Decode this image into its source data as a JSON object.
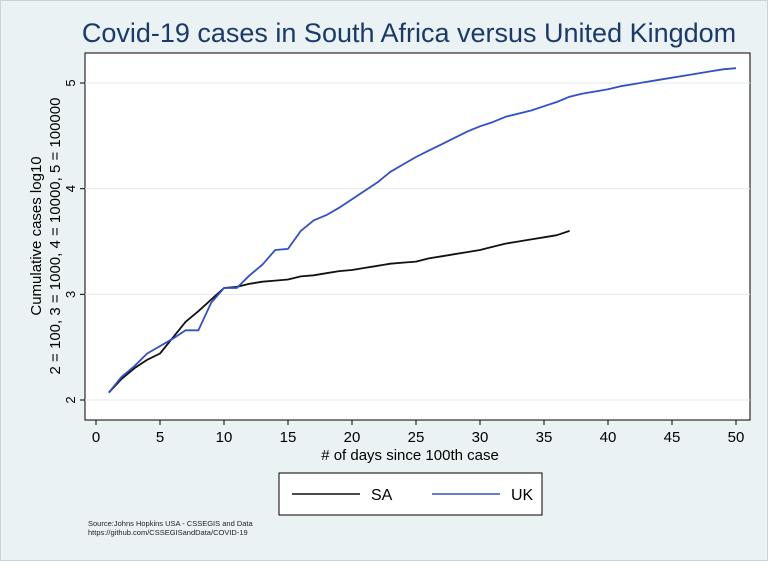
{
  "chart_data": {
    "type": "line",
    "title": "Covid-19 cases in South Africa versus United Kingdom",
    "xlabel": "# of days since 100th case",
    "ylabel_line1": "Cumulative cases log10",
    "ylabel_line2": "2 = 100,   3 = 1000, 4 = 10000, 5 = 100000",
    "xlim": [
      0,
      50
    ],
    "ylim": [
      2,
      5.3
    ],
    "x_ticks": [
      0,
      5,
      10,
      15,
      20,
      25,
      30,
      35,
      40,
      45,
      50
    ],
    "y_ticks": [
      2,
      3,
      4,
      5
    ],
    "grid": "horizontal",
    "legend_position": "bottom",
    "series": [
      {
        "name": "SA",
        "color": "#111111",
        "x": [
          1,
          2,
          3,
          4,
          5,
          6,
          7,
          8,
          9,
          10,
          11,
          12,
          13,
          14,
          15,
          16,
          17,
          18,
          19,
          20,
          21,
          22,
          23,
          24,
          25,
          26,
          27,
          28,
          29,
          30,
          31,
          32,
          33,
          34,
          35,
          36,
          37
        ],
        "values": [
          2.07,
          2.2,
          2.3,
          2.38,
          2.44,
          2.59,
          2.74,
          2.84,
          2.95,
          3.06,
          3.07,
          3.1,
          3.12,
          3.13,
          3.14,
          3.17,
          3.18,
          3.2,
          3.22,
          3.23,
          3.25,
          3.27,
          3.29,
          3.3,
          3.31,
          3.34,
          3.36,
          3.38,
          3.4,
          3.42,
          3.45,
          3.48,
          3.5,
          3.52,
          3.54,
          3.56,
          3.6
        ]
      },
      {
        "name": "UK",
        "color": "#3050c8",
        "x": [
          1,
          2,
          3,
          4,
          5,
          6,
          7,
          8,
          9,
          10,
          11,
          12,
          13,
          14,
          15,
          16,
          17,
          18,
          19,
          20,
          21,
          22,
          23,
          24,
          25,
          26,
          27,
          28,
          29,
          30,
          31,
          32,
          33,
          34,
          35,
          36,
          37,
          38,
          39,
          40,
          41,
          42,
          43,
          44,
          45,
          46,
          47,
          48,
          49,
          50
        ],
        "values": [
          2.07,
          2.22,
          2.32,
          2.44,
          2.51,
          2.58,
          2.66,
          2.66,
          2.92,
          3.06,
          3.06,
          3.18,
          3.28,
          3.42,
          3.43,
          3.6,
          3.7,
          3.75,
          3.82,
          3.9,
          3.98,
          4.06,
          4.16,
          4.23,
          4.3,
          4.36,
          4.42,
          4.48,
          4.54,
          4.59,
          4.63,
          4.68,
          4.71,
          4.74,
          4.78,
          4.82,
          4.87,
          4.9,
          4.92,
          4.94,
          4.97,
          4.99,
          5.01,
          5.03,
          5.05,
          5.07,
          5.09,
          5.11,
          5.13,
          5.14
        ]
      }
    ],
    "source_line1": "Source:Johns Hopkins USA - CSSEGIS and Data",
    "source_line2": "https://github.com/CSSEGISandData/COVID-19"
  }
}
